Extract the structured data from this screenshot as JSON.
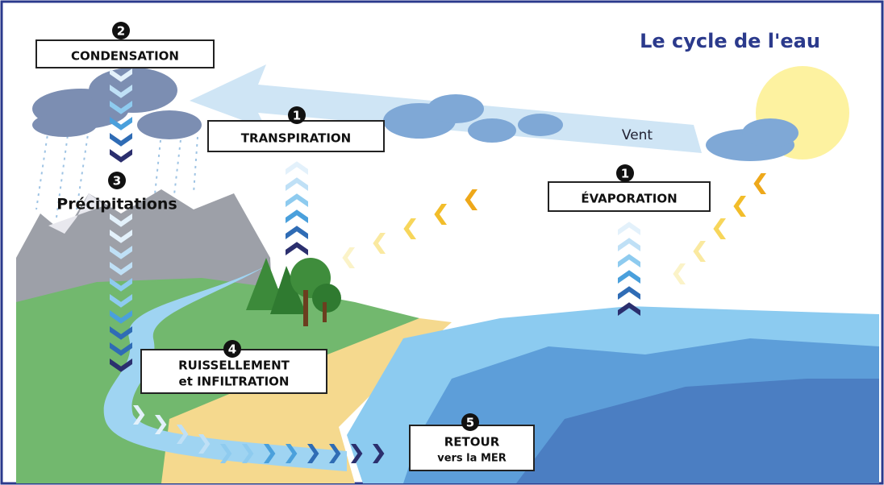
{
  "title": "Le cycle de l'eau",
  "wind": "Vent",
  "steps": [
    {
      "number": 2,
      "lines": [
        "CONDENSATION"
      ]
    },
    {
      "number": 1,
      "lines": [
        "TRANSPIRATION"
      ]
    },
    {
      "number": 3,
      "lines": [
        "Précipitations"
      ]
    },
    {
      "number": 1,
      "lines": [
        "ÉVAPORATION"
      ]
    },
    {
      "number": 4,
      "lines": [
        "RUISSELLEMENT",
        "et INFILTRATION"
      ]
    },
    {
      "number": 5,
      "lines": [
        "RETOUR",
        "vers la MER"
      ]
    }
  ]
}
